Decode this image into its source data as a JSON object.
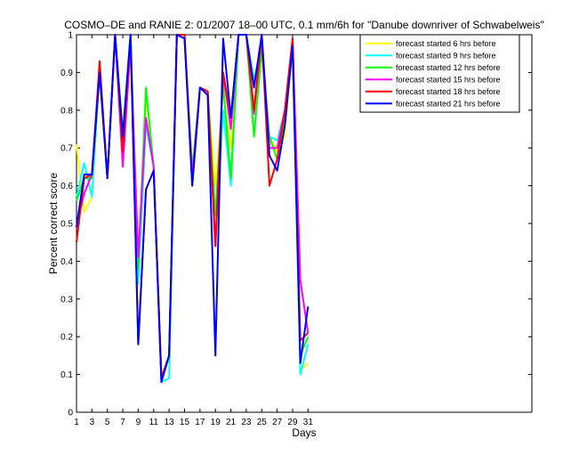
{
  "chart_data": {
    "type": "line",
    "title": "COSMO–DE and RANIE 2: 01/2007 18–00 UTC, 0.1 mm/6h for \"Danube downriver of Schwabelweis\"",
    "xlabel": "Days",
    "ylabel": "Percent correct score",
    "xlim": [
      1,
      60
    ],
    "ylim": [
      0,
      1
    ],
    "x_ticks": [
      1,
      3,
      5,
      7,
      9,
      11,
      13,
      15,
      17,
      19,
      21,
      23,
      25,
      27,
      29,
      31
    ],
    "y_ticks": [
      0,
      0.1,
      0.2,
      0.3,
      0.4,
      0.5,
      0.6,
      0.7,
      0.8,
      0.9,
      1
    ],
    "x_tick_labels": [
      "1",
      "3",
      "5",
      "7",
      "9",
      "11",
      "13",
      "15",
      "17",
      "19",
      "21",
      "23",
      "25",
      "27",
      "29",
      "31"
    ],
    "y_tick_labels": [
      "0",
      "0.1",
      "0.2",
      "0.3",
      "0.4",
      "0.5",
      "0.6",
      "0.7",
      "0.8",
      "0.9",
      "1"
    ],
    "grid": false,
    "legend_position": "top-right",
    "x": [
      1,
      2,
      3,
      4,
      5,
      6,
      7,
      8,
      9,
      10,
      11,
      12,
      13,
      14,
      15,
      16,
      17,
      18,
      19,
      20,
      21,
      22,
      23,
      24,
      25,
      26,
      27,
      28,
      29,
      30,
      31
    ],
    "series": [
      {
        "name": "forecast started 6 hrs before",
        "color": "#ffff00",
        "values": [
          0.71,
          0.53,
          0.57,
          0.91,
          0.62,
          1.0,
          0.73,
          1.0,
          0.4,
          0.84,
          0.65,
          0.1,
          0.14,
          1.0,
          1.0,
          0.65,
          0.86,
          0.85,
          0.6,
          0.85,
          0.7,
          1.0,
          1.0,
          0.87,
          0.98,
          0.73,
          0.69,
          0.73,
          0.97,
          0.11,
          0.13
        ]
      },
      {
        "name": "forecast started 9 hrs before",
        "color": "#00ffff",
        "values": [
          0.57,
          0.66,
          0.57,
          0.91,
          0.62,
          1.0,
          0.7,
          1.0,
          0.34,
          0.76,
          0.65,
          0.08,
          0.09,
          1.0,
          0.99,
          0.61,
          0.86,
          0.85,
          0.45,
          0.8,
          0.6,
          1.0,
          1.0,
          0.88,
          0.97,
          0.73,
          0.72,
          0.8,
          0.98,
          0.1,
          0.18
        ]
      },
      {
        "name": "forecast started 12 hrs before",
        "color": "#00ff00",
        "values": [
          0.56,
          0.62,
          0.62,
          0.9,
          0.62,
          1.0,
          0.74,
          1.0,
          0.38,
          0.86,
          0.65,
          0.09,
          0.15,
          1.0,
          0.99,
          0.64,
          0.86,
          0.85,
          0.52,
          0.87,
          0.62,
          1.0,
          1.0,
          0.73,
          0.96,
          0.73,
          0.67,
          0.78,
          0.97,
          0.15,
          0.2
        ]
      },
      {
        "name": "forecast started 15 hrs before",
        "color": "#ff00ff",
        "values": [
          0.49,
          0.58,
          0.63,
          0.91,
          0.62,
          1.0,
          0.65,
          0.97,
          0.41,
          0.78,
          0.65,
          0.09,
          0.15,
          1.0,
          1.0,
          0.62,
          0.86,
          0.85,
          0.44,
          0.9,
          0.75,
          1.0,
          1.0,
          0.79,
          1.0,
          0.7,
          0.7,
          0.8,
          0.99,
          0.35,
          0.21
        ]
      },
      {
        "name": "forecast started 18 hrs before",
        "color": "#ff0000",
        "values": [
          0.45,
          0.62,
          0.63,
          0.93,
          0.62,
          1.0,
          0.69,
          1.0,
          0.18,
          0.59,
          0.64,
          0.09,
          0.15,
          1.0,
          1.0,
          0.6,
          0.86,
          0.85,
          0.44,
          0.9,
          0.78,
          1.0,
          1.0,
          0.8,
          1.0,
          0.6,
          0.67,
          0.8,
          0.99,
          0.19,
          0.21
        ]
      },
      {
        "name": "forecast started 21 hrs before",
        "color": "#0000ff",
        "values": [
          0.49,
          0.63,
          0.63,
          0.9,
          0.62,
          1.0,
          0.73,
          1.0,
          0.18,
          0.59,
          0.64,
          0.08,
          0.15,
          1.0,
          0.99,
          0.6,
          0.86,
          0.84,
          0.15,
          0.99,
          0.78,
          1.0,
          1.0,
          0.86,
          1.0,
          0.68,
          0.64,
          0.76,
          0.97,
          0.13,
          0.28
        ]
      }
    ]
  }
}
